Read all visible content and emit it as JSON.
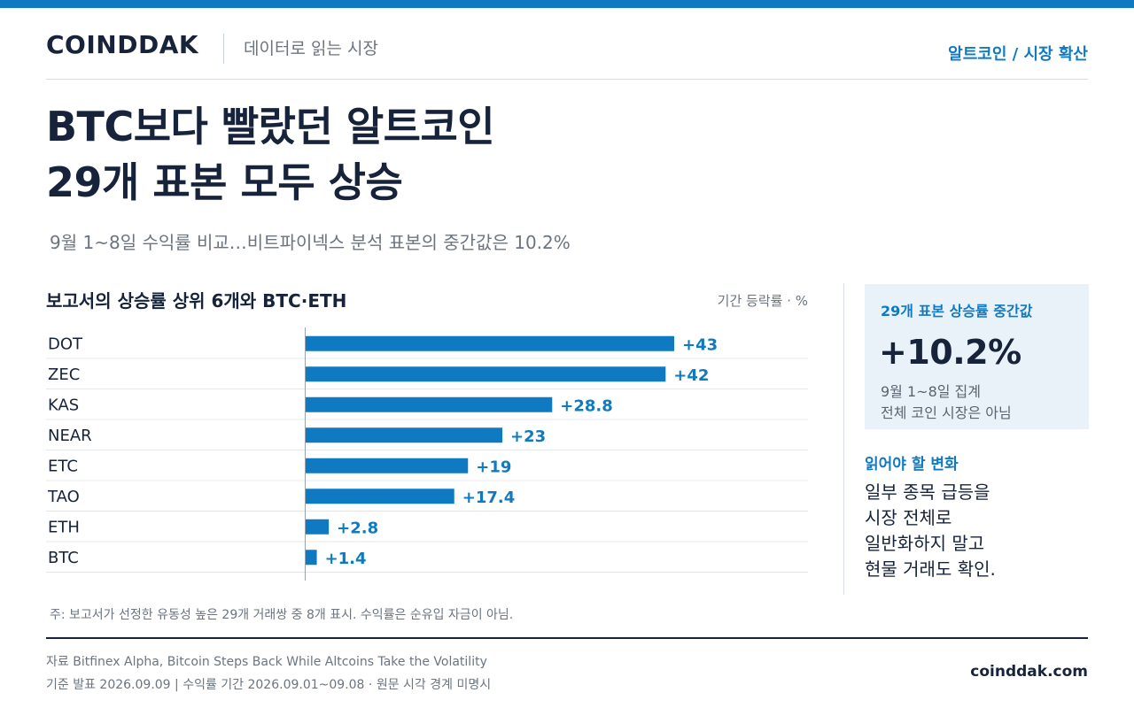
{
  "header": {
    "brand": "COINDDAK",
    "tagline": "데이터로 읽는 시장",
    "section": "알트코인 / 시장 확산"
  },
  "headline": {
    "line1": "BTC보다 빨랐던 알트코인",
    "line2": "29개 표본 모두 상승"
  },
  "subtitle": "9월 1~8일 수익률 비교…비트파이넥스 분석 표본의 중간값은 10.2%",
  "chart_data": {
    "type": "bar",
    "orientation": "horizontal",
    "title": "보고서의 상승률 상위 6개와 BTC·ETH",
    "unit_label": "기간 등락률 · %",
    "categories": [
      "DOT",
      "ZEC",
      "KAS",
      "NEAR",
      "ETC",
      "TAO",
      "ETH",
      "BTC"
    ],
    "values": [
      43,
      42,
      28.8,
      23,
      19,
      17.4,
      2.8,
      1.4
    ],
    "data_labels": [
      "+43",
      "+42",
      "+28.8",
      "+23",
      "+19",
      "+17.4",
      "+2.8",
      "+1.4"
    ],
    "xlim": [
      0,
      43
    ],
    "bar_color": "#0f7ac2",
    "grid": false
  },
  "stat_card": {
    "label": "29개 표본 상승률 중간값",
    "value": "+10.2%",
    "note_line1": "9월 1~8일 집계",
    "note_line2": "전체 코인 시장은 아님"
  },
  "read": {
    "title": "읽어야 할 변화",
    "lines": [
      "일부 종목 급등을",
      "시장 전체로",
      "일반화하지 말고",
      "현물 거래도 확인."
    ]
  },
  "footnote": "주: 보고서가 선정한 유동성 높은 29개 거래쌍 중 8개 표시. 수익률은 순유입 자금이 아님.",
  "footer": {
    "source": "자료  Bitfinex Alpha, Bitcoin Steps Back While Altcoins Take the Volatility",
    "basis": "기준  발표 2026.09.09 | 수익률 기간 2026.09.01~09.08 · 원문 시각 경계 미명시",
    "site": "coinddak.com"
  },
  "colors": {
    "accent": "#0f7ac2",
    "text_dark": "#16233a",
    "muted": "#6b7480",
    "card_bg": "#e9f2f9"
  }
}
